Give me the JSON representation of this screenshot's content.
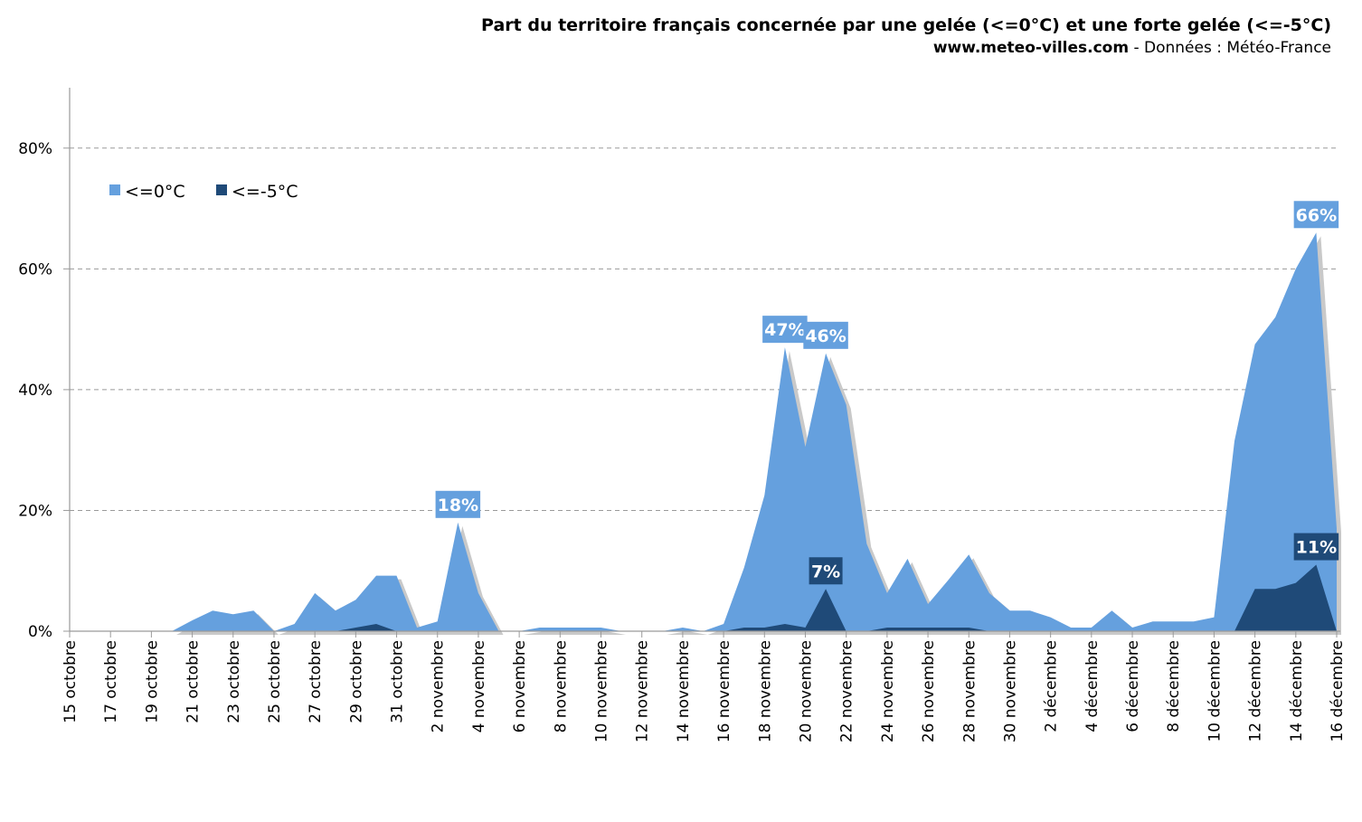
{
  "header": {
    "title": "Part du territoire français concernée par une gelée (<=0°C) et une forte gelée (<=-5°C)",
    "site": "www.meteo-villes.com",
    "source": " - Données : Météo-France"
  },
  "chart_data": {
    "type": "area",
    "x": [
      "15 octobre",
      "16 octobre",
      "17 octobre",
      "18 octobre",
      "19 octobre",
      "20 octobre",
      "21 octobre",
      "22 octobre",
      "23 octobre",
      "24 octobre",
      "25 octobre",
      "26 octobre",
      "27 octobre",
      "28 octobre",
      "29 octobre",
      "30 octobre",
      "31 octobre",
      "1 novembre",
      "2 novembre",
      "3 novembre",
      "4 novembre",
      "5 novembre",
      "6 novembre",
      "7 novembre",
      "8 novembre",
      "9 novembre",
      "10 novembre",
      "11 novembre",
      "12 novembre",
      "13 novembre",
      "14 novembre",
      "15 novembre",
      "16 novembre",
      "17 novembre",
      "18 novembre",
      "19 novembre",
      "20 novembre",
      "21 novembre",
      "22 novembre",
      "23 novembre",
      "24 novembre",
      "25 novembre",
      "26 novembre",
      "27 novembre",
      "28 novembre",
      "29 novembre",
      "30 novembre",
      "1 décembre",
      "2 décembre",
      "3 décembre",
      "4 décembre",
      "5 décembre",
      "6 décembre",
      "7 décembre",
      "8 décembre",
      "9 décembre",
      "10 décembre",
      "11 décembre",
      "12 décembre",
      "13 décembre",
      "14 décembre",
      "15 décembre",
      "16 décembre"
    ],
    "tick_labels": [
      "15 octobre",
      "17 octobre",
      "19 octobre",
      "21 octobre",
      "23 octobre",
      "25 octobre",
      "27 octobre",
      "29 octobre",
      "31 octobre",
      "2 novembre",
      "4 novembre",
      "6 novembre",
      "8 novembre",
      "10 novembre",
      "12 novembre",
      "14 novembre",
      "16 novembre",
      "18 novembre",
      "20 novembre",
      "22 novembre",
      "24 novembre",
      "26 novembre",
      "28 novembre",
      "30 novembre",
      "2 décembre",
      "4 décembre",
      "6 décembre",
      "8 décembre",
      "10 décembre",
      "12 décembre",
      "14 décembre",
      "16 décembre"
    ],
    "series": [
      {
        "name": "<=0°C",
        "color": "#65a0de",
        "values": [
          0,
          0,
          0,
          0,
          0,
          0,
          1.8,
          3.4,
          2.8,
          3.4,
          0,
          1.2,
          6.3,
          3.4,
          5.2,
          9.2,
          9.2,
          0.6,
          1.6,
          18,
          6.3,
          0,
          0,
          0.6,
          0.6,
          0.6,
          0.6,
          0,
          0,
          0,
          0.6,
          0,
          1.2,
          10.5,
          22.5,
          47,
          30.5,
          46,
          37.5,
          14.5,
          6.3,
          12,
          4.5,
          8.5,
          12.7,
          6.3,
          3.4,
          3.4,
          2.3,
          0.6,
          0.6,
          3.4,
          0.6,
          1.6,
          1.6,
          1.6,
          2.3,
          31.5,
          47.5,
          52,
          60,
          66,
          17
        ]
      },
      {
        "name": "<=-5°C",
        "color": "#1f4a78",
        "values": [
          0,
          0,
          0,
          0,
          0,
          0,
          0,
          0,
          0,
          0,
          0,
          0,
          0,
          0,
          0.6,
          1.2,
          0,
          0,
          0,
          0,
          0,
          0,
          0,
          0,
          0,
          0,
          0,
          0,
          0,
          0,
          0,
          0,
          0,
          0.6,
          0.6,
          1.2,
          0.6,
          7,
          0,
          0,
          0.6,
          0.6,
          0.6,
          0.6,
          0.6,
          0,
          0,
          0,
          0,
          0,
          0,
          0,
          0,
          0,
          0,
          0,
          0,
          0,
          7,
          7,
          8,
          11,
          0
        ]
      }
    ],
    "callouts": [
      {
        "series": 0,
        "index": 19,
        "label": "18%"
      },
      {
        "series": 0,
        "index": 35,
        "label": "47%"
      },
      {
        "series": 0,
        "index": 37,
        "label": "46%"
      },
      {
        "series": 0,
        "index": 61,
        "label": "66%"
      },
      {
        "series": 1,
        "index": 37,
        "label": "7%"
      },
      {
        "series": 1,
        "index": 61,
        "label": "11%"
      }
    ],
    "y_ticks": [
      "0%",
      "20%",
      "40%",
      "60%",
      "80%"
    ],
    "y_tick_values": [
      0,
      20,
      40,
      60,
      80
    ],
    "ylim": [
      0,
      90
    ],
    "grid": "horizontal dashed",
    "legend_position": "top-left"
  }
}
